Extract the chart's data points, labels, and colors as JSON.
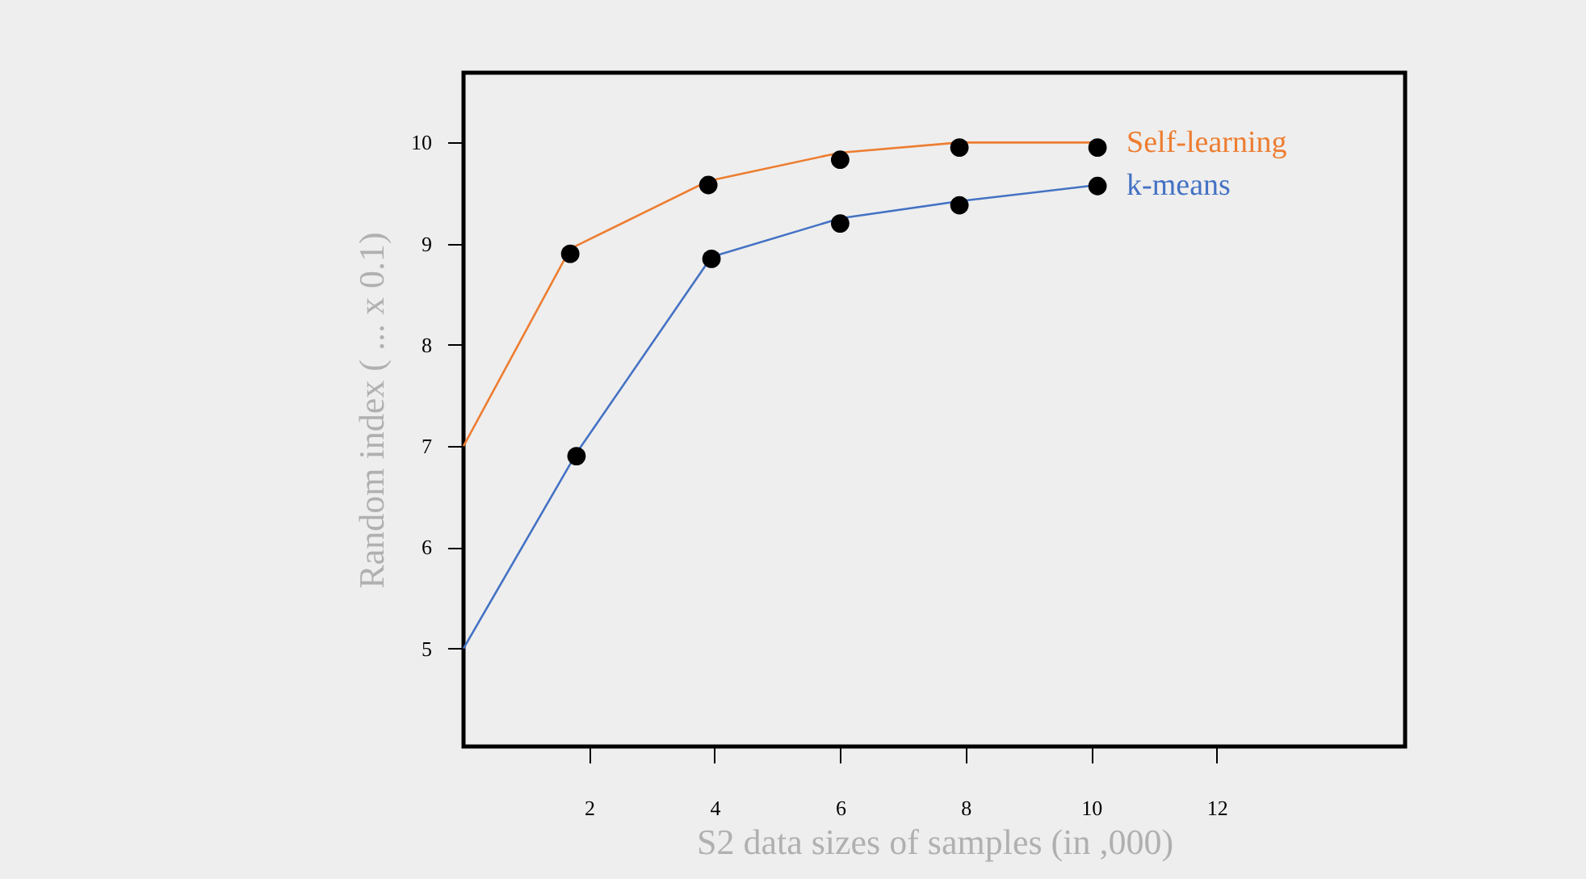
{
  "chart_data": {
    "type": "line",
    "xlabel": "S2 data sizes of samples (in ,000)",
    "ylabel": "Random index ( ... x 0.1)",
    "xlim": [
      0,
      15
    ],
    "xticks": [
      2,
      4,
      6,
      8,
      10,
      12
    ],
    "ylim": [
      4.03,
      10.69
    ],
    "yticks": [
      5,
      6,
      7,
      8,
      9,
      10
    ],
    "grid": false,
    "series": [
      {
        "name": "Self-learning",
        "color": "#ed7d31",
        "marker": "none",
        "x": [
          0,
          1.7,
          3.9,
          6,
          7.9,
          10.1
        ],
        "values": [
          7,
          8.95,
          9.62,
          9.9,
          10,
          10
        ]
      },
      {
        "name": "k-means",
        "color": "#4472c4",
        "marker": "none",
        "x": [
          0,
          1.8,
          3.95,
          6,
          7.9,
          10.1
        ],
        "values": [
          5,
          6.93,
          8.87,
          9.25,
          9.42,
          9.58
        ]
      },
      {
        "color": "#000000",
        "type": "scatter",
        "marker": "circle",
        "x": [
          1.7,
          3.9,
          6,
          7.9,
          10.1
        ],
        "values": [
          8.9,
          9.58,
          9.83,
          9.95,
          9.95
        ]
      },
      {
        "color": "#000000",
        "type": "scatter",
        "marker": "circle",
        "x": [
          1.8,
          3.95,
          6,
          7.9,
          10.1
        ],
        "values": [
          6.9,
          8.85,
          9.2,
          9.38,
          9.57
        ]
      }
    ]
  }
}
